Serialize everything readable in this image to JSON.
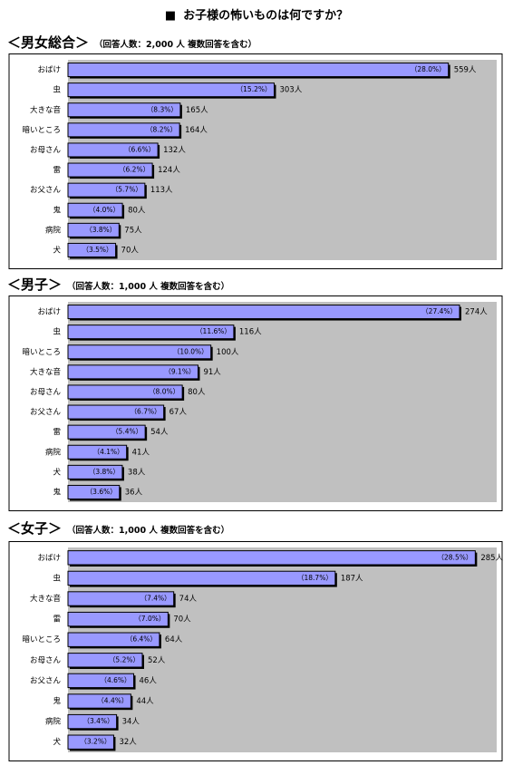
{
  "title": {
    "bullet": "■",
    "text": "お子様の怖いものは何ですか？"
  },
  "chart_data": [
    {
      "type": "bar",
      "title": "＜男女総合＞",
      "subtitle": "（回答人数：2,000 人  複数回答を含む）",
      "categories": [
        "おばけ",
        "虫",
        "大きな音",
        "暗いところ",
        "お母さん",
        "雷",
        "お父さん",
        "鬼",
        "病院",
        "犬"
      ],
      "values": [
        559,
        303,
        165,
        164,
        132,
        124,
        113,
        80,
        75,
        70
      ],
      "percent_labels": [
        "（28.0%）",
        "（15.2%）",
        "（8.3%）",
        "（8.2%）",
        "（6.6%）",
        "（6.2%）",
        "（5.7%）",
        "（4.0%）",
        "（3.8%）",
        "（3.5%）"
      ],
      "count_labels": [
        "559人",
        "303人",
        "165人",
        "164人",
        "132人",
        "124人",
        "113人",
        "80人",
        "75人",
        "70人"
      ],
      "xlim": [
        0,
        630
      ],
      "grid": false,
      "colors": {
        "bar": "#9999ff",
        "plot_background": "#c0c0c0"
      }
    },
    {
      "type": "bar",
      "title": "＜男子＞",
      "subtitle": "（回答人数：1,000 人  複数回答を含む）",
      "categories": [
        "おばけ",
        "虫",
        "暗いところ",
        "大きな音",
        "お母さん",
        "お父さん",
        "雷",
        "病院",
        "犬",
        "鬼"
      ],
      "values": [
        274,
        116,
        100,
        91,
        80,
        67,
        54,
        41,
        38,
        36
      ],
      "percent_labels": [
        "（27.4%）",
        "（11.6%）",
        "（10.0%）",
        "（9.1%）",
        "（8.0%）",
        "（6.7%）",
        "（5.4%）",
        "（4.1%）",
        "（3.8%）",
        "（3.6%）"
      ],
      "count_labels": [
        "274人",
        "116人",
        "100人",
        "91人",
        "80人",
        "67人",
        "54人",
        "41人",
        "38人",
        "36人"
      ],
      "xlim": [
        0,
        300
      ],
      "grid": false,
      "colors": {
        "bar": "#9999ff",
        "plot_background": "#c0c0c0"
      }
    },
    {
      "type": "bar",
      "title": "＜女子＞",
      "subtitle": "（回答人数：1,000 人  複数回答を含む）",
      "categories": [
        "おばけ",
        "虫",
        "大きな音",
        "雷",
        "暗いところ",
        "お母さん",
        "お父さん",
        "鬼",
        "病院",
        "犬"
      ],
      "values": [
        285,
        187,
        74,
        70,
        64,
        52,
        46,
        44,
        34,
        32
      ],
      "percent_labels": [
        "（28.5%）",
        "（18.7%）",
        "（7.4%）",
        "（7.0%）",
        "（6.4%）",
        "（5.2%）",
        "（4.6%）",
        "（4.4%）",
        "（3.4%）",
        "（3.2%）"
      ],
      "count_labels": [
        "285人",
        "187人",
        "74人",
        "70人",
        "64人",
        "52人",
        "46人",
        "44人",
        "34人",
        "32人"
      ],
      "xlim": [
        0,
        300
      ],
      "grid": false,
      "colors": {
        "bar": "#9999ff",
        "plot_background": "#c0c0c0"
      }
    }
  ]
}
